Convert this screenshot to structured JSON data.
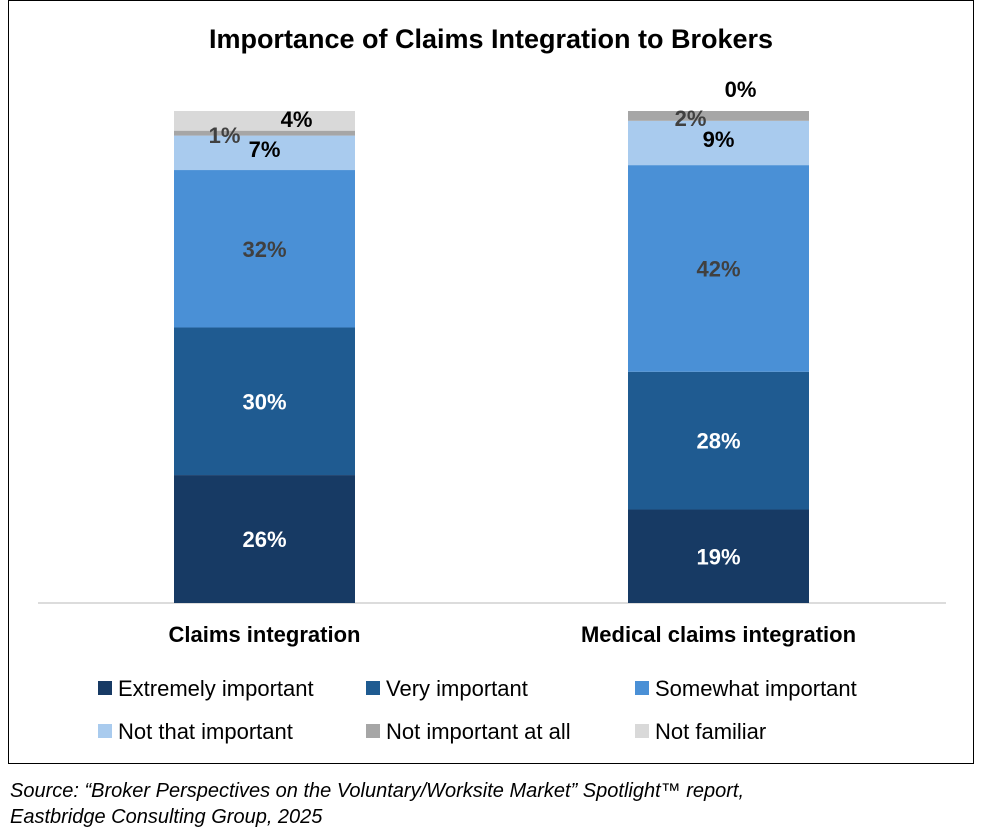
{
  "chart_data": {
    "type": "bar",
    "stacked": true,
    "title": "Importance of Claims Integration to Brokers",
    "categories": [
      "Claims integration",
      "Medical claims integration"
    ],
    "series": [
      {
        "name": "Extremely important",
        "values": [
          26,
          19
        ],
        "color": "#173a64"
      },
      {
        "name": "Very important",
        "values": [
          30,
          28
        ],
        "color": "#1f5b91"
      },
      {
        "name": "Somewhat important",
        "values": [
          32,
          42
        ],
        "color": "#4a90d6"
      },
      {
        "name": "Not that important",
        "values": [
          7,
          9
        ],
        "color": "#a9cbee"
      },
      {
        "name": "Not important at all",
        "values": [
          1,
          2
        ],
        "color": "#a6a6a6"
      },
      {
        "name": "Not familiar",
        "values": [
          4,
          0
        ],
        "color": "#d9d9d9"
      }
    ],
    "data_labels": [
      [
        "26%",
        "30%",
        "32%",
        "7%",
        "1%",
        "4%"
      ],
      [
        "19%",
        "28%",
        "42%",
        "9%",
        "2%",
        "0%"
      ]
    ],
    "ylim": [
      0,
      100
    ],
    "grid": false,
    "legend_position": "bottom"
  },
  "source": "Source: “Broker Perspectives on the Voluntary/Worksite Market” Spotlight™ report,\nEastbridge Consulting Group, 2025"
}
